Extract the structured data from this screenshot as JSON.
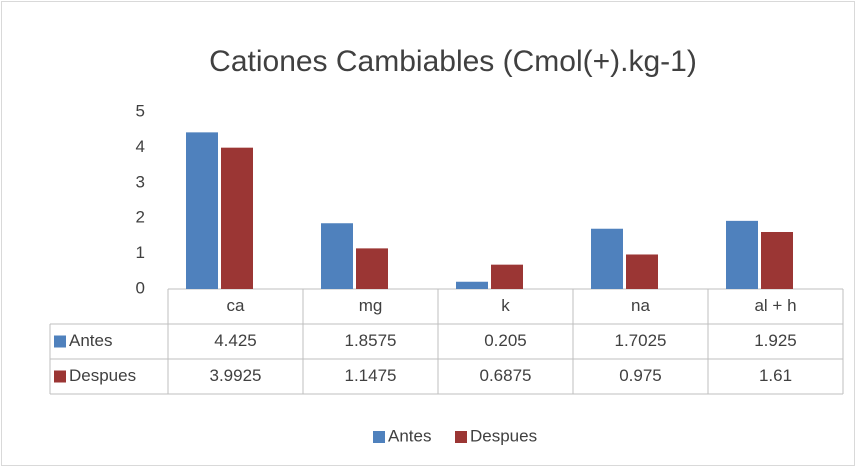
{
  "chart_data": {
    "type": "bar",
    "title": "Cationes Cambiables (Cmol(+).kg-1)",
    "categories": [
      "ca",
      "mg",
      "k",
      "na",
      "al + h"
    ],
    "series": [
      {
        "name": "Antes",
        "color": "#4f81bd",
        "values": [
          4.425,
          1.8575,
          0.205,
          1.7025,
          1.925
        ]
      },
      {
        "name": "Despues",
        "color": "#9b3634",
        "values": [
          3.9925,
          1.1475,
          0.6875,
          0.975,
          1.61
        ]
      }
    ],
    "ylim": [
      0,
      5
    ],
    "yticks": [
      0,
      1,
      2,
      3,
      4,
      5
    ],
    "grid": false,
    "data_table": true,
    "legend": "bottom"
  }
}
